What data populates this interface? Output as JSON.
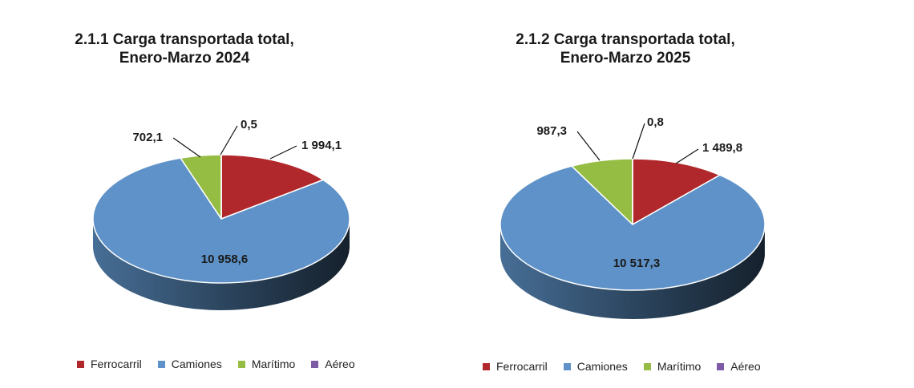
{
  "chart_data": [
    {
      "type": "pie",
      "title": "2.1.1 Carga transportada total,",
      "subtitle": "Enero-Marzo 2024",
      "slices": [
        {
          "name": "Ferrocarril",
          "value": 1994.1,
          "label": "1 994,1",
          "color": "#B0282B"
        },
        {
          "name": "Camiones",
          "value": 10958.6,
          "label": "10 958,6",
          "color": "#5E92C8"
        },
        {
          "name": "Marítimo",
          "value": 702.1,
          "label": "702,1",
          "color": "#95BC43"
        },
        {
          "name": "Aéreo",
          "value": 0.5,
          "label": "0,5",
          "color": "#7D5BA6"
        }
      ],
      "legend_position": "bottom"
    },
    {
      "type": "pie",
      "title": "2.1.2 Carga transportada total,",
      "subtitle": "Enero-Marzo 2025",
      "slices": [
        {
          "name": "Ferrocarril",
          "value": 1489.8,
          "label": "1 489,8",
          "color": "#B0282B"
        },
        {
          "name": "Camiones",
          "value": 10517.3,
          "label": "10 517,3",
          "color": "#5E92C8"
        },
        {
          "name": "Marítimo",
          "value": 987.3,
          "label": "987,3",
          "color": "#95BC43"
        },
        {
          "name": "Aéreo",
          "value": 0.8,
          "label": "0,8",
          "color": "#7D5BA6"
        }
      ],
      "legend_position": "bottom"
    }
  ]
}
